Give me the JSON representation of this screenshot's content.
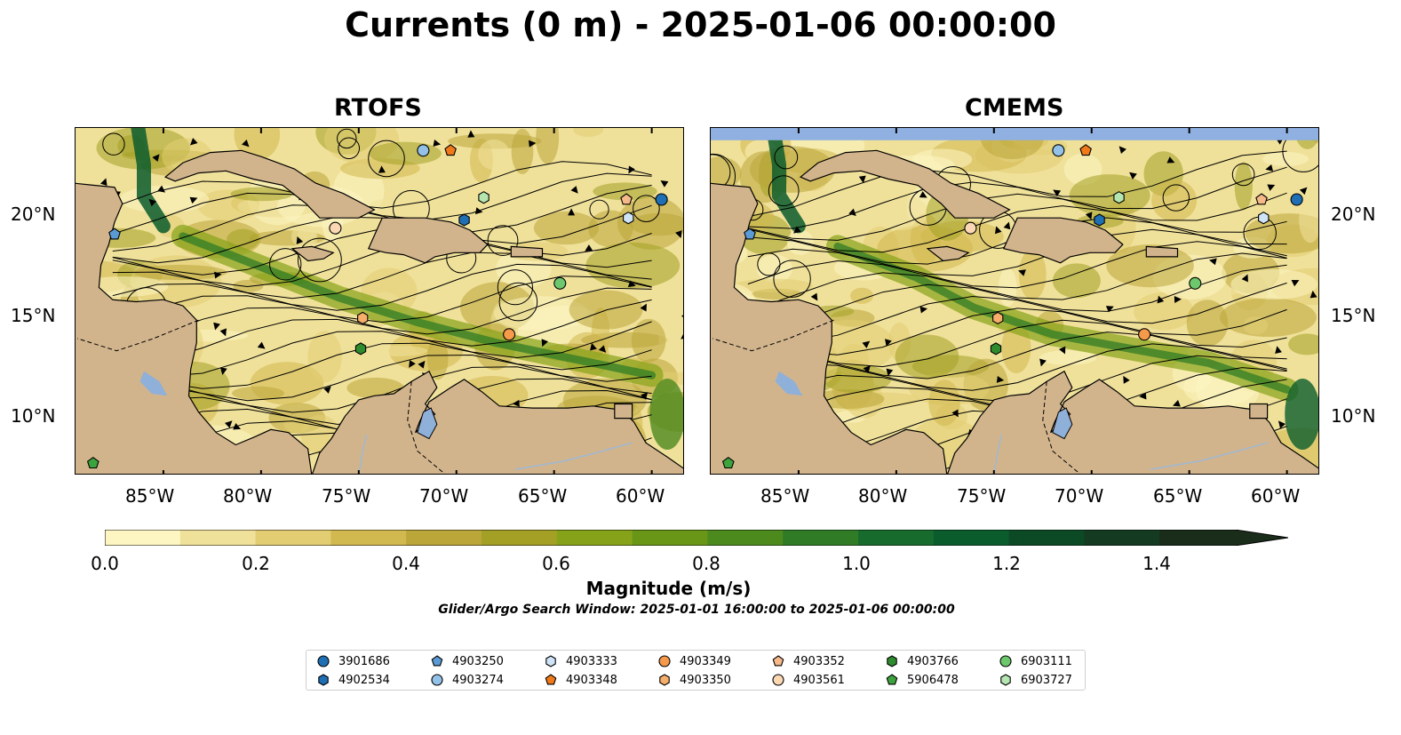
{
  "title": "Currents (0 m) - 2025-01-06 00:00:00",
  "panels": [
    {
      "name": "RTOFS"
    },
    {
      "name": "CMEMS"
    }
  ],
  "axes": {
    "lon_labels": [
      "85°W",
      "80°W",
      "75°W",
      "70°W",
      "65°W",
      "60°W"
    ],
    "lat_labels": [
      "20°N",
      "15°N",
      "10°N"
    ],
    "lon_range": [
      -89.5,
      -58.3
    ],
    "lat_range": [
      7.3,
      24.3
    ]
  },
  "colorbar": {
    "label": "Magnitude (m/s)",
    "tick_labels": [
      "0.0",
      "0.2",
      "0.4",
      "0.6",
      "0.8",
      "1.0",
      "1.2",
      "1.4"
    ],
    "range": [
      0,
      1.5
    ],
    "extend": "max",
    "colors": [
      "#fdf6c3",
      "#f0e19a",
      "#e2cd72",
      "#d1b84f",
      "#bba63a",
      "#a3a025",
      "#86a218",
      "#6a9618",
      "#4d8a1e",
      "#307c26",
      "#176b2d",
      "#0b5c2d",
      "#0c4a26",
      "#143a21",
      "#1a2c1a"
    ]
  },
  "search_window": "Glider/Argo Search Window: 2025-01-01 16:00:00 to 2025-01-06 00:00:00",
  "colors": {
    "land": "#d2b48c",
    "water_bodies": "#8fb0d8",
    "rivers": "#9fb8d4",
    "missing_data": "#8fb0e0"
  },
  "floats": [
    {
      "id": "3901686",
      "marker": "circle",
      "color": "#1f6fb4",
      "lon": -59.5,
      "lat": 20.8
    },
    {
      "id": "4902534",
      "marker": "hexagon",
      "color": "#1f6fb4",
      "lon": -69.6,
      "lat": 19.8
    },
    {
      "id": "4903250",
      "marker": "pentagon",
      "color": "#5b9bd5",
      "lon": -87.5,
      "lat": 19.1
    },
    {
      "id": "4903274",
      "marker": "circle",
      "color": "#93c1e8",
      "lon": -71.7,
      "lat": 23.2
    },
    {
      "id": "4903333",
      "marker": "hexagon",
      "color": "#cfe5f7",
      "lon": -61.2,
      "lat": 19.9
    },
    {
      "id": "4903348",
      "marker": "pentagon",
      "color": "#f07a1a",
      "lon": -70.3,
      "lat": 23.2
    },
    {
      "id": "4903349",
      "marker": "circle",
      "color": "#f5994a",
      "lon": -67.3,
      "lat": 14.2
    },
    {
      "id": "4903350",
      "marker": "hexagon",
      "color": "#f7ae6b",
      "lon": -74.8,
      "lat": 15.0
    },
    {
      "id": "4903352",
      "marker": "pentagon",
      "color": "#f7b98a",
      "lon": -61.3,
      "lat": 20.8
    },
    {
      "id": "4903561",
      "marker": "circle",
      "color": "#fbd7b4",
      "lon": -76.2,
      "lat": 19.4
    },
    {
      "id": "4903766",
      "marker": "hexagon",
      "color": "#2e8b2e",
      "lon": -74.9,
      "lat": 13.5
    },
    {
      "id": "5906478",
      "marker": "pentagon",
      "color": "#3da33d",
      "lon": -88.6,
      "lat": 7.9
    },
    {
      "id": "6903111",
      "marker": "circle",
      "color": "#6dc86d",
      "lon": -64.7,
      "lat": 16.7
    },
    {
      "id": "6903727",
      "marker": "hexagon",
      "color": "#b5e6b0",
      "lon": -68.6,
      "lat": 20.9
    }
  ]
}
